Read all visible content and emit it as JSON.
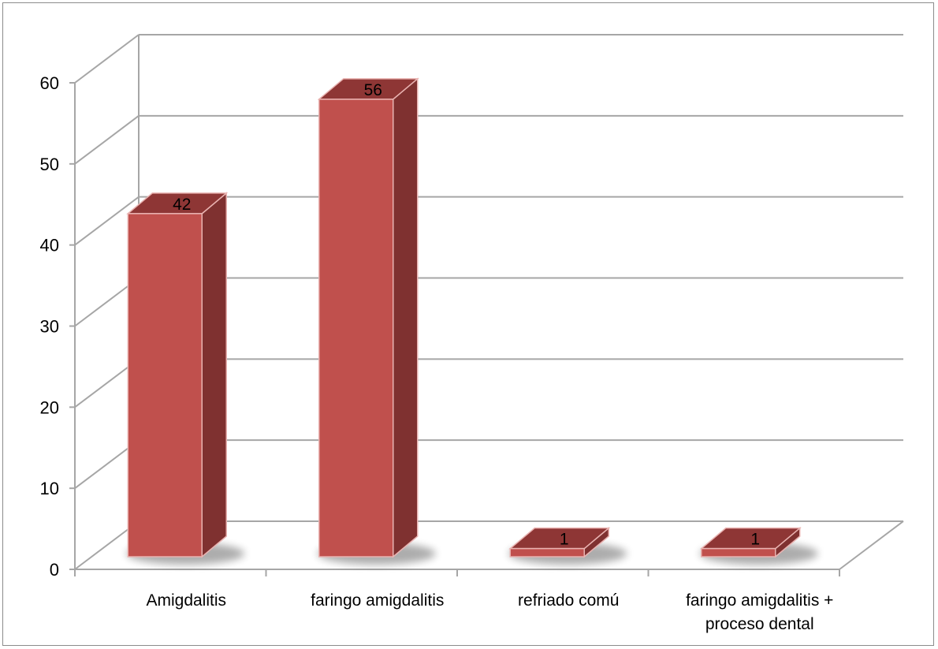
{
  "chart_data": {
    "type": "bar",
    "style": "3d-column",
    "categories": [
      "Amigdalitis",
      "faringo amigdalitis",
      "refriado comú",
      "faringo amigdalitis + proceso dental"
    ],
    "category_lines": [
      [
        "Amigdalitis"
      ],
      [
        "faringo amigdalitis"
      ],
      [
        "refriado comú"
      ],
      [
        "faringo amigdalitis +",
        "proceso dental"
      ]
    ],
    "values": [
      42,
      56,
      1,
      1
    ],
    "data_labels": [
      "42",
      "56",
      "1",
      "1"
    ],
    "y_ticks": [
      "0",
      "10",
      "20",
      "30",
      "40",
      "50",
      "60"
    ],
    "ylim": [
      0,
      60
    ],
    "grid": true,
    "legend": "none",
    "colors": {
      "bar_front": "#c0504d",
      "bar_side": "#7f3130",
      "bar_top": "#8e3635",
      "bar_edge": "#e9b3b1",
      "grid": "#a6a6a6",
      "axis_text": "#000000"
    }
  }
}
